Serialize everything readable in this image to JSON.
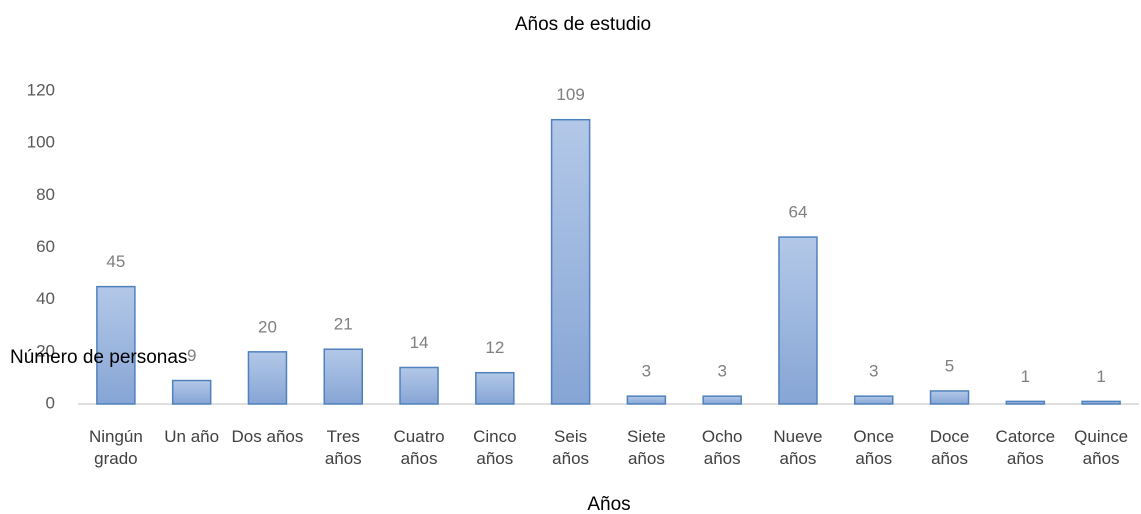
{
  "chart_data": {
    "type": "bar",
    "title": "Años de estudio",
    "x_label": "Años",
    "y_label": "Número de personas",
    "categories": [
      "Ningún grado",
      "Un año",
      "Dos años",
      "Tres años",
      "Cuatro años",
      "Cinco años",
      "Seis años",
      "Siete años",
      "Ocho años",
      "Nueve años",
      "Once años",
      "Doce años",
      "Catorce años",
      "Quince años"
    ],
    "values": [
      45,
      9,
      20,
      21,
      14,
      12,
      109,
      3,
      3,
      64,
      3,
      5,
      1,
      1
    ],
    "color": "#9db5de",
    "edge_color": "#4f81bd",
    "ylim": [
      0,
      120
    ],
    "yticks": [
      0,
      20,
      40,
      60,
      80,
      100,
      120
    ],
    "grid": false
  }
}
